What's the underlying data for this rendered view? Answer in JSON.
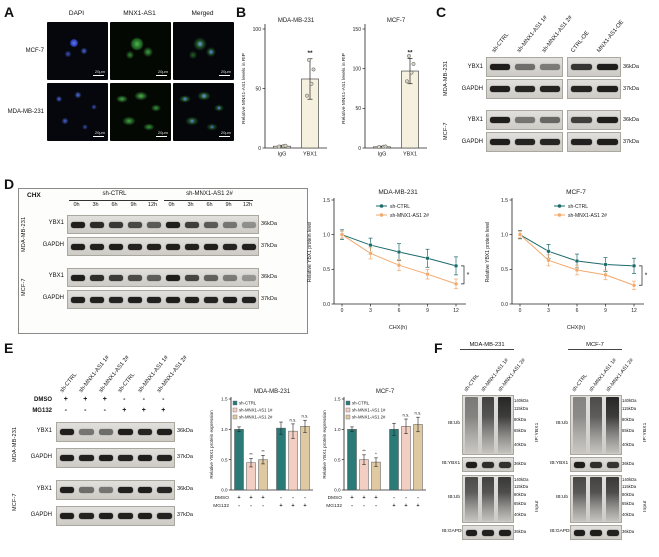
{
  "panelA": {
    "label": "A",
    "col_headers": [
      "DAPI",
      "MNX1-AS1",
      "Merged"
    ],
    "rows": [
      {
        "cell": "MCF-7"
      },
      {
        "cell": "MDA-MB-231"
      }
    ],
    "scale_label": "20μm"
  },
  "panelB": {
    "label": "B",
    "charts": [
      {
        "type": "bar",
        "title": "MDA-MB-231",
        "ylabel": "Relative MNX1-AS1 levels in RIP",
        "categories": [
          "IgG",
          "YBX1"
        ],
        "values": [
          1.5,
          58
        ],
        "errors": [
          0.8,
          17
        ],
        "points": [
          [
            1.2,
            1.6,
            1.9
          ],
          [
            44,
            54,
            66,
            74
          ]
        ],
        "ylim": [
          0,
          100
        ],
        "yticks": [
          0,
          50,
          100
        ],
        "sig": "**"
      },
      {
        "type": "bar",
        "title": "MCF-7",
        "ylabel": "Relative MNX1-AS1 levels in RIP",
        "categories": [
          "IgG",
          "YBX1"
        ],
        "values": [
          1.5,
          97
        ],
        "errors": [
          0.8,
          16
        ],
        "points": [
          [
            1.2,
            1.6,
            1.9
          ],
          [
            84,
            95,
            106,
            116
          ]
        ],
        "ylim": [
          0,
          150
        ],
        "yticks": [
          0,
          50,
          100,
          150
        ],
        "sig": "**"
      }
    ]
  },
  "panelC": {
    "label": "C",
    "lane_groups": [
      {
        "labels": [
          "sh-CTRL",
          "sh-MNX1-AS1 1#",
          "sh-MNX1-AS1 2#"
        ]
      },
      {
        "labels": [
          "CTRL-OE",
          "MNX1-AS1-OE"
        ]
      }
    ],
    "cell_groups": [
      {
        "cell": "MDA-MB-231",
        "rows": [
          {
            "protein": "YBX1",
            "kda": "36kDa",
            "lanes1": [
              1,
              0.5,
              0.42
            ],
            "lanes2": [
              0.85,
              1
            ]
          },
          {
            "protein": "GAPDH",
            "kda": "37kDa",
            "lanes1": [
              1,
              0.96,
              0.97
            ],
            "lanes2": [
              0.97,
              1
            ]
          }
        ]
      },
      {
        "cell": "MCF-7",
        "rows": [
          {
            "protein": "YBX1",
            "kda": "36kDa",
            "lanes1": [
              1,
              0.45,
              0.55
            ],
            "lanes2": [
              0.8,
              1
            ]
          },
          {
            "protein": "GAPDH",
            "kda": "37kDa",
            "lanes1": [
              1,
              0.97,
              0.96
            ],
            "lanes2": [
              0.98,
              1
            ]
          }
        ]
      }
    ]
  },
  "panelD": {
    "label": "D",
    "chx_label": "CHX",
    "group_headers": [
      "sh-CTRL",
      "sh-MNX1-AS1 2#"
    ],
    "timepoints": [
      "0h",
      "3h",
      "6h",
      "9h",
      "12h"
    ],
    "cell_groups": [
      {
        "cell": "MDA-MB-231",
        "rows": [
          {
            "protein": "YBX1",
            "kda": "36kDa",
            "lanes": [
              1,
              0.92,
              0.84,
              0.74,
              0.62,
              1,
              0.8,
              0.62,
              0.46,
              0.3
            ]
          },
          {
            "protein": "GAPDH",
            "kda": "37kDa",
            "lanes": [
              1,
              0.98,
              1,
              0.97,
              0.99,
              1,
              0.98,
              1,
              0.97,
              0.99
            ]
          }
        ]
      },
      {
        "cell": "MCF-7",
        "rows": [
          {
            "protein": "YBX1",
            "kda": "36kDa",
            "lanes": [
              1,
              0.9,
              0.82,
              0.72,
              0.6,
              1,
              0.75,
              0.58,
              0.42,
              0.26
            ]
          },
          {
            "protein": "GAPDH",
            "kda": "37kDa",
            "lanes": [
              1,
              0.99,
              0.97,
              1,
              0.98,
              1,
              0.99,
              0.97,
              1,
              0.98
            ]
          }
        ]
      }
    ],
    "charts": [
      {
        "type": "line",
        "title": "MDA-MB-231",
        "xlabel": "CHX(h)",
        "ylabel": "Relative YBX1 protein level",
        "x": [
          0,
          3,
          6,
          9,
          12
        ],
        "ylim": [
          0,
          1.5
        ],
        "yticks": [
          "0.0",
          "0.5",
          "1.0",
          "1.5"
        ],
        "series": [
          {
            "name": "sh-CTRL",
            "color": "#1d6a6a",
            "values": [
              1.0,
              0.85,
              0.75,
              0.66,
              0.55
            ],
            "errors": [
              0.07,
              0.1,
              0.12,
              0.13,
              0.13
            ]
          },
          {
            "name": "sh-MNX1-AS1 2#",
            "color": "#f2a96d",
            "values": [
              1.0,
              0.73,
              0.56,
              0.43,
              0.29
            ],
            "errors": [
              0.05,
              0.08,
              0.08,
              0.07,
              0.07
            ]
          }
        ],
        "sig": "*"
      },
      {
        "type": "line",
        "title": "MCF-7",
        "xlabel": "CHX(h)",
        "ylabel": "Relative YBX1 protein level",
        "x": [
          0,
          3,
          6,
          9,
          12
        ],
        "ylim": [
          0,
          1.5
        ],
        "yticks": [
          "0.0",
          "0.5",
          "1.0",
          "1.5"
        ],
        "series": [
          {
            "name": "sh-CTRL",
            "color": "#1d6a6a",
            "values": [
              1.0,
              0.76,
              0.62,
              0.57,
              0.55
            ],
            "errors": [
              0.06,
              0.1,
              0.1,
              0.1,
              0.11
            ]
          },
          {
            "name": "sh-MNX1-AS1 2#",
            "color": "#f2a96d",
            "values": [
              1.0,
              0.63,
              0.49,
              0.42,
              0.27
            ],
            "errors": [
              0.05,
              0.08,
              0.07,
              0.07,
              0.06
            ]
          }
        ],
        "sig": "*"
      }
    ]
  },
  "panelE": {
    "label": "E",
    "lane_labels": [
      "sh-CTRL",
      "sh-MNX1-AS1 1#",
      "sh-MNX1-AS1 2#",
      "sh-CTRL",
      "sh-MNX1-AS1 1#",
      "sh-MNX1-AS1 2#"
    ],
    "treatments": [
      {
        "name": "DMSO",
        "signs": [
          "+",
          "+",
          "+",
          "-",
          "-",
          "-"
        ]
      },
      {
        "name": "MG132",
        "signs": [
          "-",
          "-",
          "-",
          "+",
          "+",
          "+"
        ]
      }
    ],
    "cell_groups": [
      {
        "cell": "MDA-MB-231",
        "rows": [
          {
            "protein": "YBX1",
            "kda": "36kDa",
            "lanes": [
              1,
              0.45,
              0.5,
              1,
              0.95,
              1
            ]
          },
          {
            "protein": "GAPDH",
            "kda": "37kDa",
            "lanes": [
              1,
              0.98,
              1,
              0.97,
              1,
              0.98
            ]
          }
        ]
      },
      {
        "cell": "MCF-7",
        "rows": [
          {
            "protein": "YBX1",
            "kda": "36kDa",
            "lanes": [
              1,
              0.5,
              0.45,
              0.98,
              1,
              0.95
            ]
          },
          {
            "protein": "GAPDH",
            "kda": "37kDa",
            "lanes": [
              1,
              0.97,
              1,
              0.98,
              1,
              0.97
            ]
          }
        ]
      }
    ],
    "charts": [
      {
        "type": "grouped-bar",
        "title": "MDA-MB-231",
        "ylabel": "Relative YBX1 protein expression",
        "legend": [
          "sh-CTRL",
          "sh-MNX1-AS1 1#",
          "sh-MNX1-AS1 2#"
        ],
        "colors": [
          "#2a7a78",
          "#f3cfc3",
          "#dfc9a2"
        ],
        "values": [
          1.0,
          0.45,
          0.5,
          1.02,
          0.97,
          1.05
        ],
        "errors": [
          0.04,
          0.07,
          0.07,
          0.1,
          0.12,
          0.1
        ],
        "sigs": [
          "",
          "**",
          "**",
          "",
          "n.s.",
          "n.s."
        ],
        "ylim": [
          0,
          1.5
        ],
        "yticks": [
          "0.0",
          "0.5",
          "1.0",
          "1.5"
        ],
        "axis_rows": [
          {
            "name": "DMSO",
            "signs": [
              "+",
              "+",
              "+",
              "-",
              "-",
              "-"
            ]
          },
          {
            "name": "MG132",
            "signs": [
              "-",
              "-",
              "-",
              "+",
              "+",
              "+"
            ]
          }
        ]
      },
      {
        "type": "grouped-bar",
        "title": "MCF-7",
        "ylabel": "Relative YBX1 protein expression",
        "legend": [
          "sh-CTRL",
          "sh-MNX1-AS1 1#",
          "sh-MNX1-AS1 2#"
        ],
        "colors": [
          "#2a7a78",
          "#f3cfc3",
          "#dfc9a2"
        ],
        "values": [
          1.0,
          0.5,
          0.46,
          1.0,
          1.05,
          1.08
        ],
        "errors": [
          0.04,
          0.08,
          0.07,
          0.1,
          0.12,
          0.12
        ],
        "sigs": [
          "",
          "**",
          "*",
          "",
          "n.s.",
          "n.s."
        ],
        "ylim": [
          0,
          1.5
        ],
        "yticks": [
          "0.0",
          "0.5",
          "1.0",
          "1.5"
        ],
        "axis_rows": [
          {
            "name": "DMSO",
            "signs": [
              "+",
              "+",
              "+",
              "-",
              "-",
              "-"
            ]
          },
          {
            "name": "MG132",
            "signs": [
              "-",
              "-",
              "-",
              "+",
              "+",
              "+"
            ]
          }
        ]
      }
    ]
  },
  "panelF": {
    "label": "F",
    "side_labels": [
      "IP:YBX1",
      "Input"
    ],
    "blocks": [
      {
        "cell": "MDA-MB-231",
        "lane_labels": [
          "sh-CTRL",
          "sh-MNX1-AS1 1#",
          "sh-MNX1-AS1 2#"
        ],
        "rows": [
          {
            "ib": "IB:Ub",
            "type": "smear",
            "markers": [
              "140kDa",
              "115kDa",
              "80kDa",
              "65kDa",
              "40kDa"
            ],
            "lanes": [
              0.55,
              0.85,
              1
            ]
          },
          {
            "ib": "IB:YBX1",
            "type": "band",
            "markers": [
              "36kDa"
            ],
            "lanes": [
              1,
              0.9,
              0.88
            ]
          },
          {
            "ib": "IB:Ub",
            "type": "smear",
            "markers": [
              "140kDa",
              "115kDa",
              "80kDa",
              "65kDa",
              "40kDa"
            ],
            "lanes": [
              0.8,
              0.85,
              0.9
            ]
          },
          {
            "ib": "IB:GAPDH",
            "type": "band",
            "markers": [
              "36kDa"
            ],
            "lanes": [
              1,
              0.98,
              1
            ]
          }
        ]
      },
      {
        "cell": "MCF-7",
        "lane_labels": [
          "sh-CTRL",
          "sh-MNX1-AS1 1#",
          "sh-MNX1-AS1 2#"
        ],
        "rows": [
          {
            "ib": "IB:Ub",
            "type": "smear",
            "markers": [
              "140kDa",
              "115kDa",
              "80kDa",
              "65kDa",
              "40kDa"
            ],
            "lanes": [
              0.5,
              0.8,
              1
            ]
          },
          {
            "ib": "IB:YBX1",
            "type": "band",
            "markers": [
              "36kDa"
            ],
            "lanes": [
              1,
              0.9,
              0.86
            ]
          },
          {
            "ib": "IB:Ub",
            "type": "smear",
            "markers": [
              "140kDa",
              "115kDa",
              "80kDa",
              "65kDa",
              "40kDa"
            ],
            "lanes": [
              0.82,
              0.86,
              0.9
            ]
          },
          {
            "ib": "IB:GAPDH",
            "type": "band",
            "markers": [
              "36kDa"
            ],
            "lanes": [
              1,
              1,
              0.98
            ]
          }
        ]
      }
    ]
  }
}
